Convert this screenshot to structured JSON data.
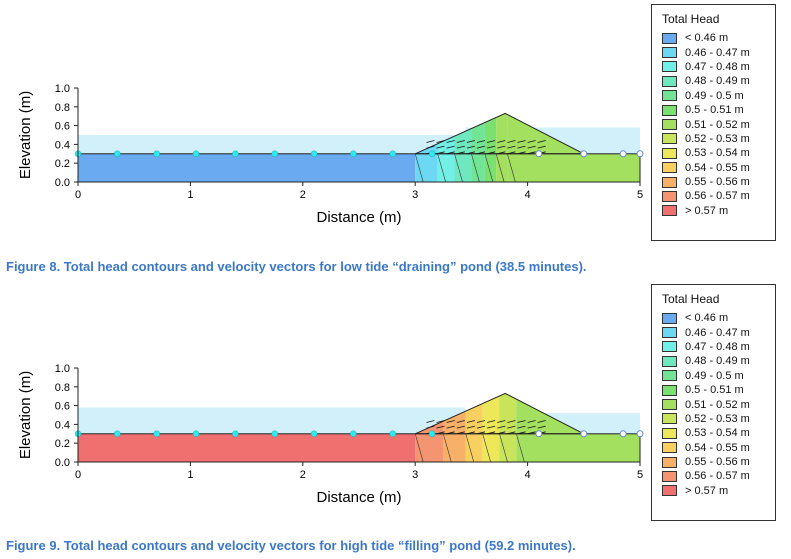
{
  "legend": {
    "title": "Total Head",
    "items": [
      {
        "label": "< 0.46 m",
        "color": "#6aaaf0"
      },
      {
        "label": "0.46 - 0.47 m",
        "color": "#6cd8f4"
      },
      {
        "label": "0.47 - 0.48 m",
        "color": "#72f0e8"
      },
      {
        "label": "0.48 - 0.49 m",
        "color": "#6fe8c0"
      },
      {
        "label": "0.49 - 0.5 m",
        "color": "#72e496"
      },
      {
        "label": "0.5 - 0.51 m",
        "color": "#7ae070"
      },
      {
        "label": "0.51 - 0.52 m",
        "color": "#a4e060"
      },
      {
        "label": "0.52 - 0.53 m",
        "color": "#c8e45a"
      },
      {
        "label": "0.53 - 0.54 m",
        "color": "#ece85a"
      },
      {
        "label": "0.54 - 0.55 m",
        "color": "#f8d060"
      },
      {
        "label": "0.55 - 0.56 m",
        "color": "#f6b068"
      },
      {
        "label": "0.56 - 0.57 m",
        "color": "#f49470"
      },
      {
        "label": "> 0.57 m",
        "color": "#f07070"
      }
    ]
  },
  "chart_data": [
    {
      "type": "contour",
      "caption": "Figure 8.  Total head contours and velocity vectors for low tide “draining” pond (38.5 minutes).",
      "xlabel": "Distance (m)",
      "ylabel": "Elevation (m)",
      "xlim": [
        0,
        5
      ],
      "ylim": [
        0,
        1.0
      ],
      "xticks": [
        "0",
        "1",
        "2",
        "3",
        "4",
        "5"
      ],
      "yticks": [
        "0.0",
        "0.2",
        "0.4",
        "0.6",
        "0.8",
        "1.0"
      ],
      "water_level": {
        "left": 0.5,
        "right": 0.58
      },
      "domain_top": 0.3,
      "berm": [
        [
          3.0,
          0.3
        ],
        [
          3.8,
          0.73
        ],
        [
          4.5,
          0.3
        ]
      ],
      "regions": [
        {
          "x": [
            0,
            3.0
          ],
          "color": "#6aaaf0"
        },
        {
          "x": [
            3.0,
            3.2
          ],
          "color": "#6cd8f4"
        },
        {
          "x": [
            3.2,
            3.35
          ],
          "color": "#72f0e8"
        },
        {
          "x": [
            3.35,
            3.5
          ],
          "color": "#6fe8c0"
        },
        {
          "x": [
            3.5,
            3.62
          ],
          "color": "#72e496"
        },
        {
          "x": [
            3.62,
            3.72
          ],
          "color": "#7ae070"
        },
        {
          "x": [
            3.72,
            3.82
          ],
          "color": "#a4e060"
        },
        {
          "x": [
            3.82,
            5.0
          ],
          "color": "#a4e060"
        }
      ],
      "nodes_x": [
        0,
        0.35,
        0.7,
        1.05,
        1.4,
        1.75,
        2.1,
        2.45,
        2.8,
        3.15
      ],
      "open_nodes_x": [
        4.1,
        4.5,
        4.85,
        5.0
      ]
    },
    {
      "type": "contour",
      "caption": "Figure 9.  Total head contours and velocity vectors for high tide “filling” pond (59.2 minutes).",
      "xlabel": "Distance (m)",
      "ylabel": "Elevation (m)",
      "xlim": [
        0,
        5
      ],
      "ylim": [
        0,
        1.0
      ],
      "xticks": [
        "0",
        "1",
        "2",
        "3",
        "4",
        "5"
      ],
      "yticks": [
        "0.0",
        "0.2",
        "0.4",
        "0.6",
        "0.8",
        "1.0"
      ],
      "water_level": {
        "left": 0.58,
        "right": 0.52
      },
      "domain_top": 0.3,
      "berm": [
        [
          3.0,
          0.3
        ],
        [
          3.8,
          0.73
        ],
        [
          4.5,
          0.3
        ]
      ],
      "regions": [
        {
          "x": [
            0,
            3.0
          ],
          "color": "#f07070"
        },
        {
          "x": [
            3.0,
            3.25
          ],
          "color": "#f49470"
        },
        {
          "x": [
            3.25,
            3.45
          ],
          "color": "#f6b068"
        },
        {
          "x": [
            3.45,
            3.6
          ],
          "color": "#f8d060"
        },
        {
          "x": [
            3.6,
            3.75
          ],
          "color": "#ece85a"
        },
        {
          "x": [
            3.75,
            3.9
          ],
          "color": "#c8e45a"
        },
        {
          "x": [
            3.9,
            5.0
          ],
          "color": "#a4e060"
        }
      ],
      "nodes_x": [
        0,
        0.35,
        0.7,
        1.05,
        1.4,
        1.75,
        2.1,
        2.45,
        2.8,
        3.15
      ],
      "open_nodes_x": [
        4.1,
        4.5,
        4.85,
        5.0
      ]
    }
  ]
}
